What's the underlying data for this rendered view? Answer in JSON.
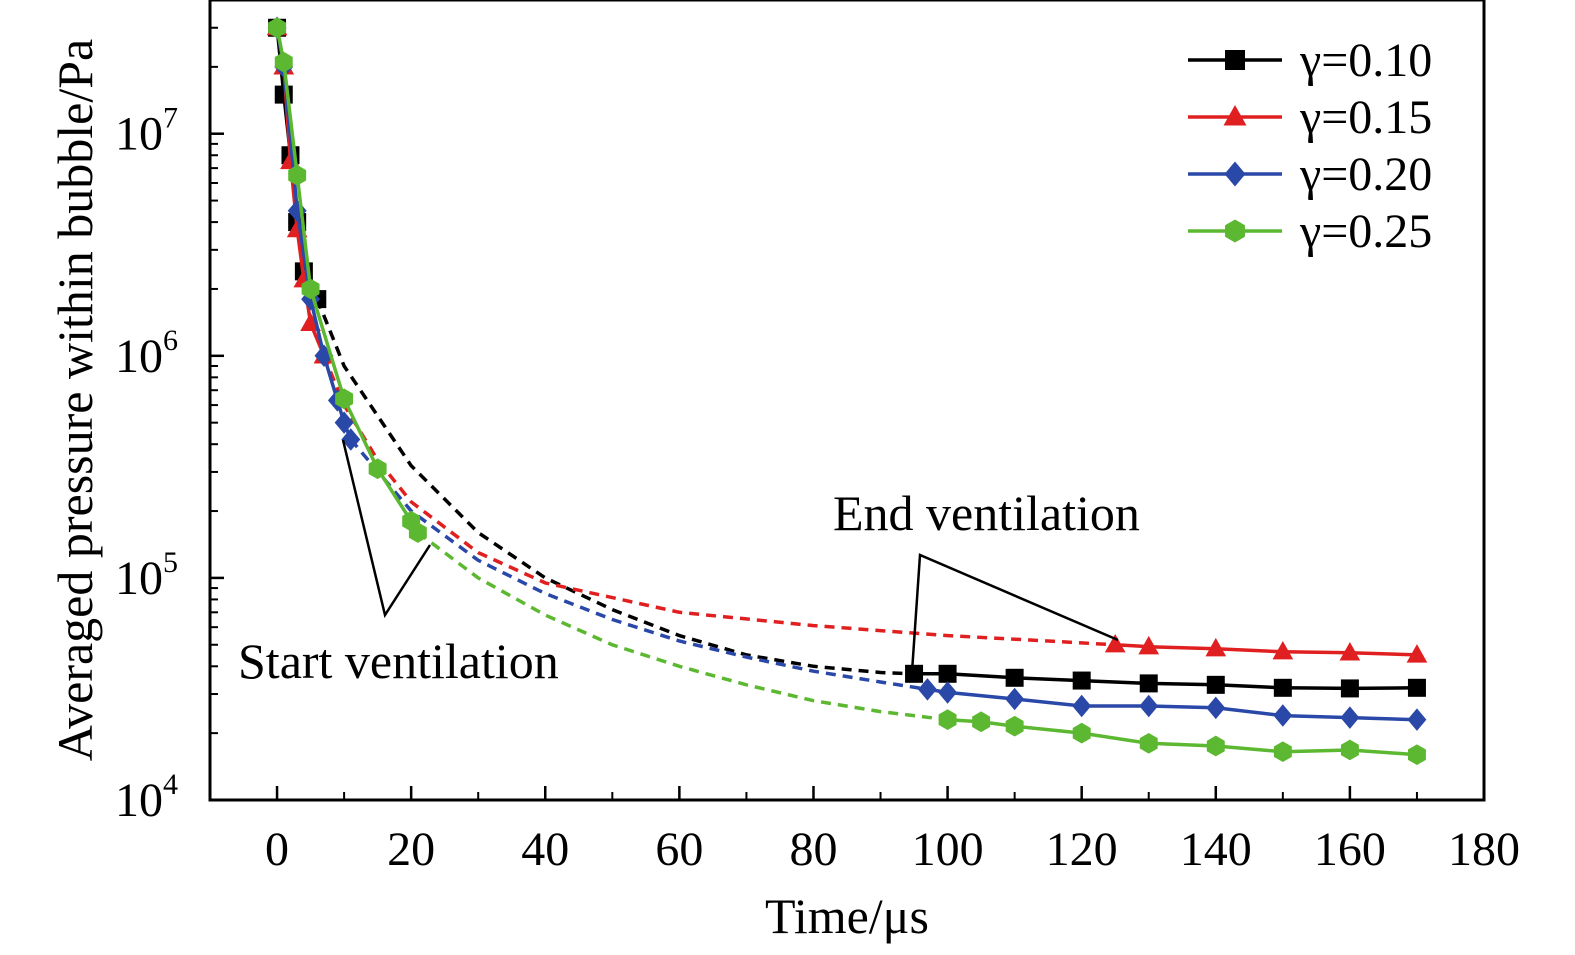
{
  "chart_data": {
    "type": "line",
    "title": "",
    "xlabel": "Time/μs",
    "ylabel": "Averaged pressure within bubble/Pa",
    "xlim": [
      -10,
      180
    ],
    "ylim": [
      10000,
      40000000
    ],
    "yscale": "log",
    "grid": false,
    "legend_position": "top-right",
    "x_ticks": [
      0,
      20,
      40,
      60,
      80,
      100,
      120,
      140,
      160,
      180
    ],
    "x_tick_labels": [
      "0",
      "20",
      "40",
      "60",
      "80",
      "100",
      "120",
      "140",
      "160",
      "180"
    ],
    "y_ticks": [
      {
        "value": 10000,
        "base": "10",
        "exp": "4"
      },
      {
        "value": 100000,
        "base": "10",
        "exp": "5"
      },
      {
        "value": 1000000,
        "base": "10",
        "exp": "6"
      },
      {
        "value": 10000000,
        "base": "10",
        "exp": "7"
      }
    ],
    "series": [
      {
        "name": "γ=0.10",
        "color": "#000000",
        "marker": "square",
        "start_solid": [
          [
            0,
            30000000
          ],
          [
            1,
            15000000
          ],
          [
            2,
            8000000
          ],
          [
            3,
            4000000
          ],
          [
            4,
            2400000
          ],
          [
            6,
            1800000
          ]
        ],
        "ventilation": [
          [
            6,
            1800000
          ],
          [
            10,
            900000
          ],
          [
            20,
            320000
          ],
          [
            30,
            160000
          ],
          [
            40,
            100000
          ],
          [
            50,
            72000
          ],
          [
            60,
            55000
          ],
          [
            70,
            45000
          ],
          [
            80,
            40000
          ],
          [
            90,
            37500
          ],
          [
            95,
            37000
          ]
        ],
        "end_solid": [
          [
            95,
            37000
          ],
          [
            100,
            37000
          ],
          [
            110,
            35500
          ],
          [
            120,
            34500
          ],
          [
            130,
            33500
          ],
          [
            140,
            33000
          ],
          [
            150,
            32000
          ],
          [
            160,
            31800
          ],
          [
            170,
            32000
          ]
        ]
      },
      {
        "name": "γ=0.15",
        "color": "#e02020",
        "marker": "triangle",
        "start_solid": [
          [
            0,
            30000000
          ],
          [
            1,
            20000000
          ],
          [
            2,
            7500000
          ],
          [
            3,
            3700000
          ],
          [
            4,
            2200000
          ],
          [
            5,
            1400000
          ],
          [
            7,
            1000000
          ]
        ],
        "ventilation": [
          [
            7,
            1000000
          ],
          [
            10,
            600000
          ],
          [
            15,
            340000
          ],
          [
            20,
            220000
          ],
          [
            30,
            130000
          ],
          [
            40,
            95000
          ],
          [
            60,
            70000
          ],
          [
            80,
            61000
          ],
          [
            100,
            55000
          ],
          [
            115,
            52000
          ],
          [
            125,
            50000
          ]
        ],
        "end_solid": [
          [
            125,
            50000
          ],
          [
            130,
            49000
          ],
          [
            140,
            48000
          ],
          [
            150,
            46500
          ],
          [
            160,
            46000
          ],
          [
            170,
            45000
          ]
        ]
      },
      {
        "name": "γ=0.20",
        "color": "#2a48a8",
        "marker": "diamond",
        "start_solid": [
          [
            0,
            30000000
          ],
          [
            1,
            20000000
          ],
          [
            3,
            4500000
          ],
          [
            5,
            1800000
          ],
          [
            7,
            1000000
          ],
          [
            9,
            630000
          ],
          [
            10,
            500000
          ],
          [
            11,
            420000
          ]
        ],
        "ventilation": [
          [
            11,
            420000
          ],
          [
            20,
            200000
          ],
          [
            30,
            120000
          ],
          [
            40,
            85000
          ],
          [
            50,
            65000
          ],
          [
            60,
            52000
          ],
          [
            70,
            44000
          ],
          [
            80,
            38000
          ],
          [
            90,
            34000
          ],
          [
            97,
            31500
          ]
        ],
        "end_solid": [
          [
            97,
            31500
          ],
          [
            100,
            30500
          ],
          [
            110,
            28500
          ],
          [
            120,
            26500
          ],
          [
            130,
            26500
          ],
          [
            140,
            26000
          ],
          [
            150,
            24000
          ],
          [
            160,
            23500
          ],
          [
            170,
            23000
          ]
        ]
      },
      {
        "name": "γ=0.25",
        "color": "#5cb830",
        "marker": "hexagon",
        "start_solid": [
          [
            0,
            30000000
          ],
          [
            1,
            21000000
          ],
          [
            3,
            6500000
          ],
          [
            5,
            2000000
          ],
          [
            10,
            640000
          ],
          [
            15,
            310000
          ],
          [
            20,
            180000
          ],
          [
            21,
            160000
          ]
        ],
        "ventilation": [
          [
            21,
            160000
          ],
          [
            30,
            100000
          ],
          [
            40,
            68000
          ],
          [
            50,
            50000
          ],
          [
            60,
            40000
          ],
          [
            70,
            33000
          ],
          [
            80,
            28000
          ],
          [
            90,
            25000
          ],
          [
            100,
            23000
          ]
        ],
        "end_solid": [
          [
            100,
            23000
          ],
          [
            105,
            22500
          ],
          [
            110,
            21500
          ],
          [
            120,
            20000
          ],
          [
            130,
            18000
          ],
          [
            140,
            17500
          ],
          [
            150,
            16500
          ],
          [
            160,
            16800
          ],
          [
            170,
            16000
          ]
        ]
      }
    ],
    "annotations": [
      {
        "text": "Start ventilation"
      },
      {
        "text": "End ventilation"
      }
    ]
  }
}
